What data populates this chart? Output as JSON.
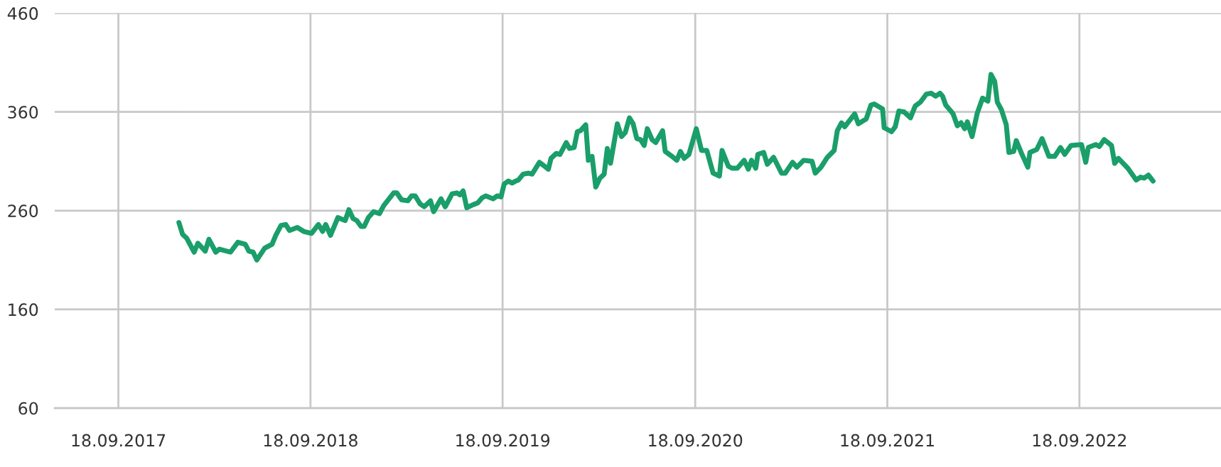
{
  "chart_data": {
    "type": "line",
    "grid": true,
    "tick_labels": true,
    "xlim": [
      "2017-05-20",
      "2023-06-14"
    ],
    "ylim": [
      60,
      460
    ],
    "yticks": [
      60,
      160,
      260,
      360,
      460
    ],
    "xticks": [
      {
        "value": "2017-09-18",
        "label": "18.09.2017"
      },
      {
        "value": "2018-09-18",
        "label": "18.09.2018"
      },
      {
        "value": "2019-09-18",
        "label": "18.09.2019"
      },
      {
        "value": "2020-09-18",
        "label": "18.09.2020"
      },
      {
        "value": "2021-09-18",
        "label": "18.09.2021"
      },
      {
        "value": "2022-09-18",
        "label": "18.09.2022"
      }
    ],
    "series": [
      {
        "color": "#1a9e6a",
        "x": [
          "2018-01-11",
          "2018-01-18",
          "2018-01-26",
          "2018-02-09",
          "2018-02-16",
          "2018-03-02",
          "2018-03-09",
          "2018-03-22",
          "2018-03-29",
          "2018-04-19",
          "2018-05-03",
          "2018-05-17",
          "2018-05-24",
          "2018-06-01",
          "2018-06-08",
          "2018-06-23",
          "2018-07-07",
          "2018-07-14",
          "2018-07-24",
          "2018-08-02",
          "2018-08-09",
          "2018-08-24",
          "2018-09-05",
          "2018-09-20",
          "2018-10-03",
          "2018-10-11",
          "2018-10-17",
          "2018-10-26",
          "2018-11-09",
          "2018-11-23",
          "2018-11-30",
          "2018-12-08",
          "2018-12-15",
          "2018-12-23",
          "2018-12-29",
          "2019-01-06",
          "2019-01-16",
          "2019-01-27",
          "2019-02-04",
          "2019-02-23",
          "2019-03-01",
          "2019-03-10",
          "2019-03-22",
          "2019-03-29",
          "2019-04-05",
          "2019-04-14",
          "2019-04-22",
          "2019-05-04",
          "2019-05-10",
          "2019-05-24",
          "2019-06-01",
          "2019-06-14",
          "2019-06-23",
          "2019-06-29",
          "2019-07-05",
          "2019-07-12",
          "2019-07-24",
          "2019-08-02",
          "2019-08-10",
          "2019-08-17",
          "2019-08-31",
          "2019-09-08",
          "2019-09-15",
          "2019-09-21",
          "2019-09-29",
          "2019-10-06",
          "2019-10-13",
          "2019-10-18",
          "2019-10-27",
          "2019-11-06",
          "2019-11-13",
          "2019-11-27",
          "2019-12-14",
          "2019-12-19",
          "2019-12-29",
          "2020-01-05",
          "2020-01-17",
          "2020-01-23",
          "2020-02-01",
          "2020-02-07",
          "2020-02-13",
          "2020-02-23",
          "2020-02-28",
          "2020-03-06",
          "2020-03-13",
          "2020-03-21",
          "2020-03-29",
          "2020-04-04",
          "2020-04-10",
          "2020-04-23",
          "2020-05-01",
          "2020-05-08",
          "2020-05-16",
          "2020-05-23",
          "2020-05-30",
          "2020-06-06",
          "2020-06-13",
          "2020-06-19",
          "2020-06-28",
          "2020-07-05",
          "2020-07-18",
          "2020-07-23",
          "2020-08-05",
          "2020-08-14",
          "2020-08-21",
          "2020-08-28",
          "2020-09-06",
          "2020-09-20",
          "2020-09-30",
          "2020-10-10",
          "2020-10-22",
          "2020-11-03",
          "2020-11-08",
          "2020-11-20",
          "2020-11-27",
          "2020-12-07",
          "2020-12-20",
          "2020-12-28",
          "2021-01-03",
          "2021-01-11",
          "2021-01-15",
          "2021-01-26",
          "2021-02-02",
          "2021-02-14",
          "2021-03-01",
          "2021-03-08",
          "2021-03-22",
          "2021-03-30",
          "2021-04-12",
          "2021-04-28",
          "2021-05-04",
          "2021-05-15",
          "2021-05-27",
          "2021-06-09",
          "2021-06-15",
          "2021-06-23",
          "2021-06-29",
          "2021-07-18",
          "2021-07-25",
          "2021-08-09",
          "2021-08-18",
          "2021-08-24",
          "2021-09-09",
          "2021-09-12",
          "2021-09-26",
          "2021-10-03",
          "2021-10-10",
          "2021-10-20",
          "2021-11-01",
          "2021-11-10",
          "2021-11-20",
          "2021-12-01",
          "2021-12-10",
          "2021-12-19",
          "2021-12-27",
          "2022-01-01",
          "2022-01-07",
          "2022-01-15",
          "2022-01-21",
          "2022-01-29",
          "2022-02-05",
          "2022-02-12",
          "2022-02-17",
          "2022-02-26",
          "2022-03-08",
          "2022-03-18",
          "2022-03-28",
          "2022-04-03",
          "2022-04-10",
          "2022-04-15",
          "2022-04-23",
          "2022-05-02",
          "2022-05-07",
          "2022-05-16",
          "2022-05-21",
          "2022-05-31",
          "2022-06-12",
          "2022-06-16",
          "2022-06-29",
          "2022-07-09",
          "2022-07-22",
          "2022-08-02",
          "2022-08-13",
          "2022-08-21",
          "2022-09-02",
          "2022-09-22",
          "2022-09-30",
          "2022-10-05",
          "2022-10-19",
          "2022-10-26",
          "2022-11-04",
          "2022-11-18",
          "2022-11-24",
          "2022-12-01",
          "2022-12-19",
          "2023-01-04",
          "2023-01-12",
          "2023-01-19",
          "2023-01-27",
          "2023-02-05"
        ],
        "values": [
          248,
          236,
          232,
          218,
          227,
          219,
          231,
          218,
          221,
          218,
          228,
          226,
          219,
          218,
          210,
          222,
          226,
          235,
          245,
          246,
          240,
          243,
          239,
          237,
          246,
          239,
          246,
          235,
          253,
          250,
          261,
          252,
          250,
          244,
          244,
          253,
          259,
          257,
          265,
          278,
          278,
          271,
          270,
          275,
          275,
          267,
          264,
          270,
          259,
          272,
          264,
          277,
          278,
          276,
          280,
          263,
          266,
          268,
          273,
          275,
          272,
          275,
          274,
          287,
          290,
          288,
          290,
          291,
          297,
          298,
          297,
          309,
          302,
          313,
          318,
          317,
          329,
          323,
          324,
          340,
          341,
          347,
          311,
          315,
          284,
          293,
          297,
          323,
          308,
          348,
          335,
          339,
          354,
          348,
          333,
          332,
          326,
          343,
          332,
          329,
          341,
          320,
          315,
          311,
          320,
          313,
          317,
          343,
          321,
          321,
          298,
          295,
          321,
          305,
          303,
          303,
          311,
          302,
          311,
          303,
          317,
          319,
          307,
          314,
          298,
          298,
          309,
          304,
          311,
          310,
          298,
          304,
          314,
          321,
          341,
          349,
          345,
          358,
          348,
          353,
          367,
          368,
          363,
          344,
          340,
          345,
          361,
          360,
          354,
          366,
          370,
          378,
          379,
          376,
          379,
          376,
          367,
          362,
          358,
          346,
          349,
          343,
          350,
          335,
          359,
          374,
          371,
          398,
          391,
          370,
          362,
          347,
          319,
          320,
          331,
          318,
          304,
          319,
          322,
          333,
          315,
          315,
          324,
          317,
          326,
          327,
          309,
          324,
          327,
          325,
          332,
          326,
          308,
          313,
          303,
          291,
          294,
          293,
          296,
          290
        ]
      }
    ]
  }
}
